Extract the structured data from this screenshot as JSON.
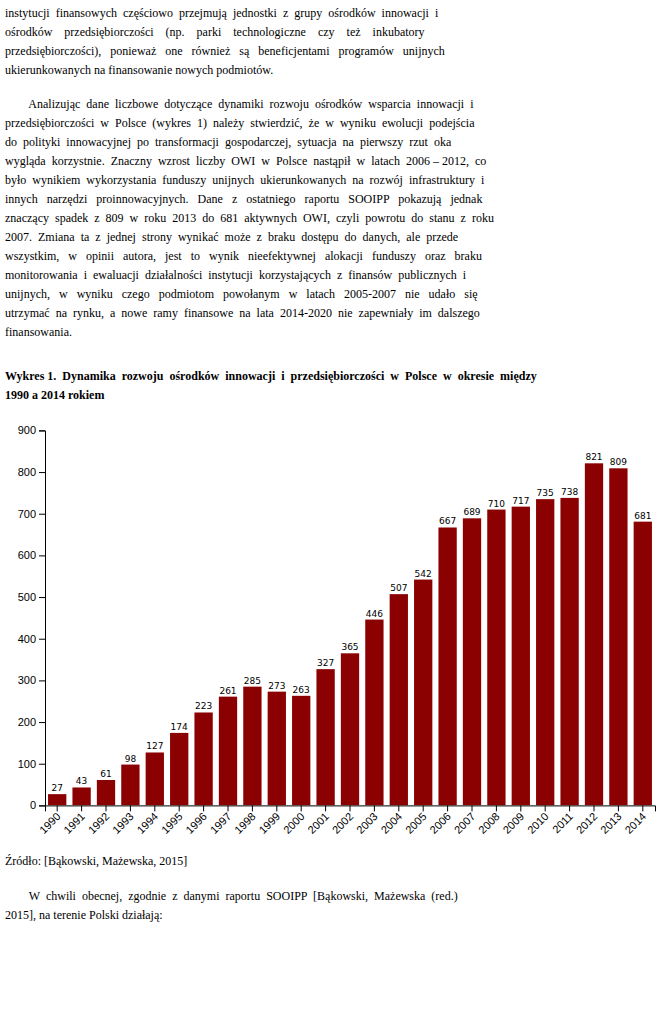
{
  "chart_data": {
    "type": "bar",
    "title": [
      "Wykres 1.  Dynamika  rozwoju  ośrodków  innowacji  i  przedsiębiorczości  w  Polsce  w  okresie  między",
      "1990 a 2014 rokiem"
    ],
    "categories": [
      "1990",
      "1991",
      "1992",
      "1993",
      "1994",
      "1995",
      "1996",
      "1997",
      "1998",
      "1999",
      "2000",
      "2001",
      "2002",
      "2003",
      "2004",
      "2005",
      "2006",
      "2007",
      "2008",
      "2009",
      "2010",
      "2011",
      "2012",
      "2013",
      "2014"
    ],
    "values": [
      27,
      43,
      61,
      98,
      127,
      174,
      223,
      261,
      285,
      273,
      263,
      327,
      365,
      446,
      507,
      542,
      667,
      689,
      710,
      717,
      735,
      738,
      821,
      809,
      681
    ],
    "color": "#8B0000",
    "ylim": [
      0,
      900
    ],
    "yticks": [
      0,
      100,
      200,
      300,
      400,
      500,
      600,
      700,
      800,
      900
    ],
    "grid": false,
    "data_labels": true,
    "source": "Źródło: [Bąkowski, Mażewska, 2015]"
  },
  "text_above": [
    [
      "instytucji  finansowych  częściowo  przejmują  jednostki  z  grupy  ośrodków  innowacji  i",
      "ośrodków    przedsiębiorczości    (np.    parki    technologiczne    czy    też    inkubatory",
      "przedsiębiorczości),   ponieważ   one   również   są   beneficjentami   programów   unijnych",
      "ukierunkowanych na finansowanie nowych podmiotów."
    ],
    [
      "        Analizując  dane  liczbowe  dotyczące  dynamiki  rozwoju  ośrodków  wsparcia  innowacji  i",
      "przedsiębiorczości  w  Polsce  (wykres  1)  należy  stwierdzić,  że  w  wyniku  ewolucji  podejścia",
      "do  polityki  innowacyjnej  po  transformacji  gospodarczej,  sytuacja  na  pierwszy  rzut  oka",
      "wygląda  korzystnie.  Znaczny  wzrost  liczby  OWI  w  Polsce  nastąpił  w  latach  2006 – 2012,  co",
      "było  wynikiem  wykorzystania  funduszy  unijnych  ukierunkowanych  na  rozwój  infrastruktury  i",
      "innych   narzędzi   proinnowacyjnych.   Dane   z   ostatniego   raportu   SOOIPP   pokazują   jednak",
      "znaczący  spadek  z  809  w  roku  2013  do  681  aktywnych  OWI,  czyli  powrotu  do  stanu  z  roku",
      "2007.  Zmiana  ta  z  jednej  strony  wynikać  może  z  braku  dostępu  do  danych,  ale  przede",
      "wszystkim,   w   opinii   autora,   jest   to   wynik   nieefektywnej   alokacji   funduszy   oraz   braku",
      "monitorowania  i  ewaluacji  działalności  instytucji  korzystających  z  finansów  publicznych  i",
      "unijnych,   w   wyniku   czego   podmiotom   powołanym   w   latach   2005-2007   nie   udało   się",
      "utrzymać  na  rynku,  a  nowe  ramy  finansowe  na  lata  2014-2020  nie  zapewniały  im  dalszego",
      "finansowania."
    ]
  ],
  "text_below": [
    "        W  chwili  obecnej,  zgodnie  z  danymi  raportu  SOOIPP  [Bąkowski,  Mażewska  (red.)",
    "2015], na terenie Polski działają:"
  ]
}
